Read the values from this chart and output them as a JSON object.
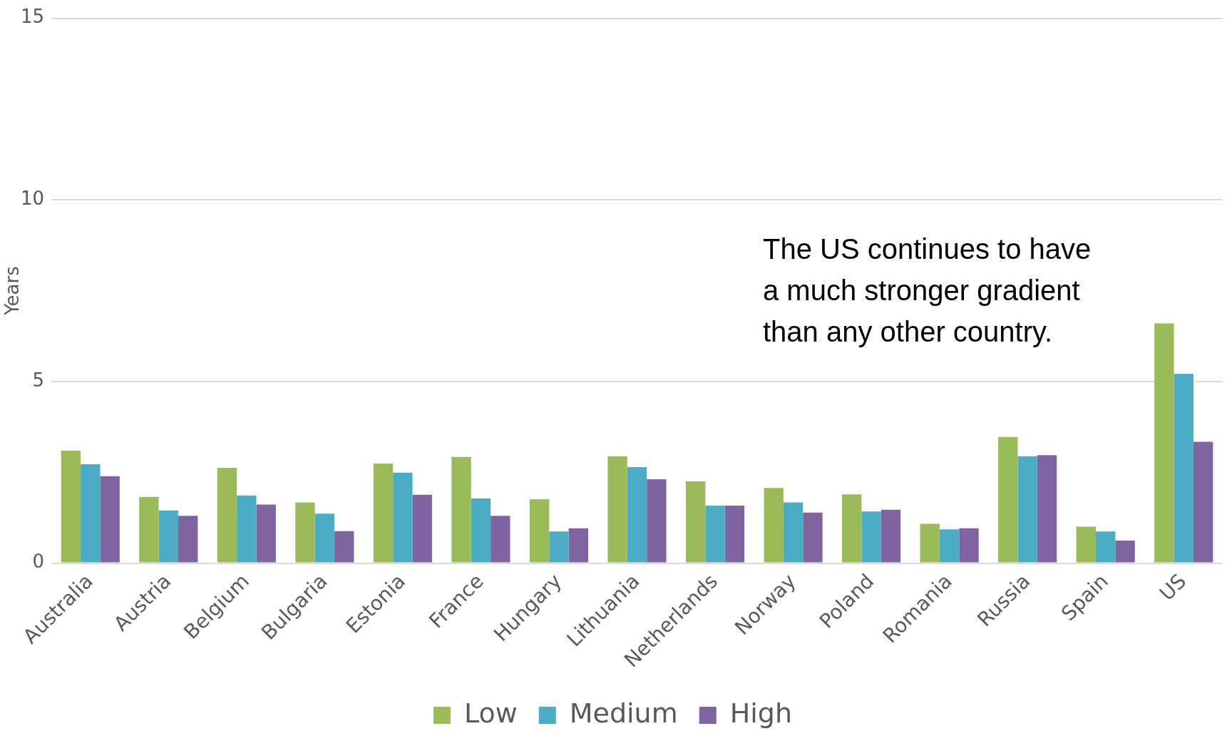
{
  "chart_data": {
    "type": "bar",
    "ylabel": "Years",
    "categories": [
      "Australia",
      "Austria",
      "Belgium",
      "Bulgaria",
      "Estonia",
      "France",
      "Hungary",
      "Lithuania",
      "Netherlands",
      "Norway",
      "Poland",
      "Romania",
      "Russia",
      "Spain",
      "US"
    ],
    "series": [
      {
        "name": "Low",
        "color": "#9bbb59",
        "values": [
          3.1,
          1.82,
          2.62,
          1.67,
          2.74,
          2.92,
          1.76,
          2.94,
          2.25,
          2.07,
          1.89,
          1.08,
          3.47,
          1.0,
          6.6
        ]
      },
      {
        "name": "Medium",
        "color": "#4bacc6",
        "values": [
          2.72,
          1.45,
          1.86,
          1.36,
          2.49,
          1.78,
          0.87,
          2.64,
          1.58,
          1.67,
          1.42,
          0.93,
          2.94,
          0.87,
          5.21
        ]
      },
      {
        "name": "High",
        "color": "#8064a2",
        "values": [
          2.39,
          1.3,
          1.61,
          0.88,
          1.88,
          1.3,
          0.96,
          2.31,
          1.58,
          1.39,
          1.47,
          0.96,
          2.97,
          0.62,
          3.34
        ]
      }
    ],
    "ylim": [
      0,
      15
    ],
    "yticks": [
      0,
      5,
      10,
      15
    ],
    "grid": "y",
    "legend": "bottom",
    "annotations": [
      "The US continues to have a much stronger gradient than any other country."
    ]
  }
}
